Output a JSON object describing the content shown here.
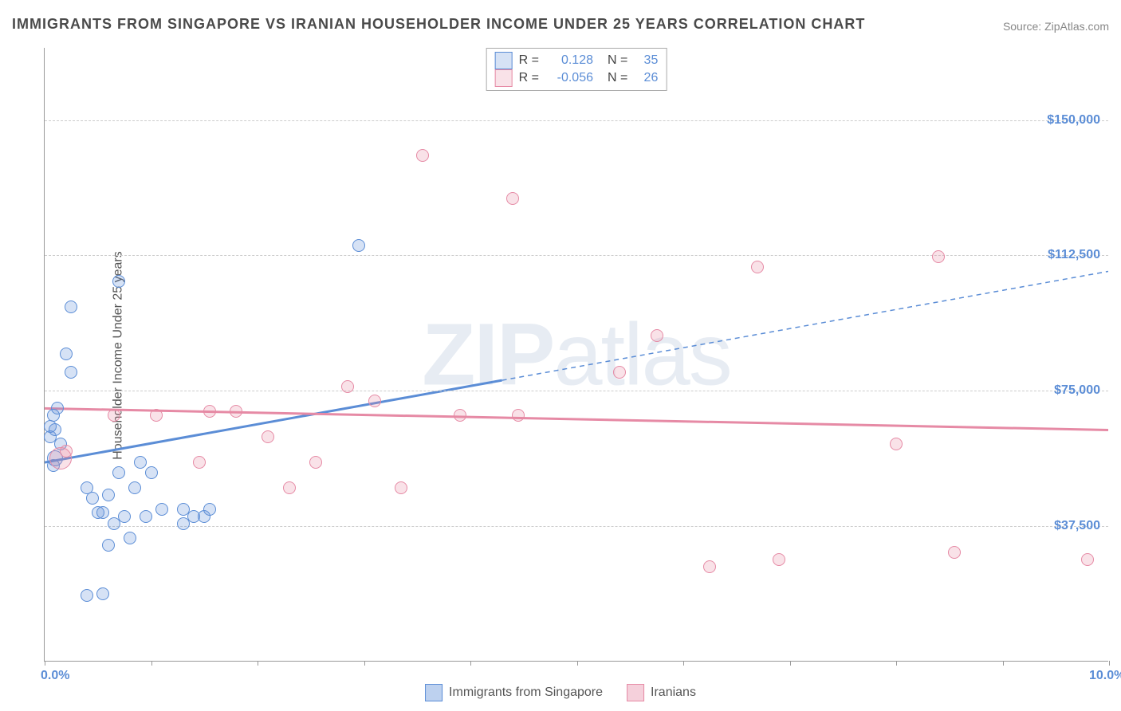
{
  "title": "IMMIGRANTS FROM SINGAPORE VS IRANIAN HOUSEHOLDER INCOME UNDER 25 YEARS CORRELATION CHART",
  "source": "Source: ZipAtlas.com",
  "watermark": "ZIPatlas",
  "chart": {
    "type": "scatter",
    "background_color": "#ffffff",
    "grid_color": "#cccccc",
    "axis_color": "#999999",
    "xlim": [
      0,
      10
    ],
    "ylim": [
      0,
      170000
    ],
    "x_ticks": [
      0,
      1,
      2,
      3,
      4,
      5,
      6,
      7,
      8,
      9,
      10
    ],
    "x_tick_labels": {
      "0": "0.0%",
      "10": "10.0%"
    },
    "y_gridlines": [
      37500,
      75000,
      112500,
      150000
    ],
    "y_tick_labels": [
      "$37,500",
      "$75,000",
      "$112,500",
      "$150,000"
    ],
    "ylabel": "Householder Income Under 25 years",
    "ylabel_fontsize": 16,
    "tick_label_color": "#5b8dd6",
    "tick_label_fontsize": 16,
    "marker_radius": 8,
    "marker_stroke_width": 1.5,
    "marker_fill_opacity": 0.25
  },
  "series": [
    {
      "name": "Immigrants from Singapore",
      "color": "#5b8dd6",
      "fill": "rgba(91,141,214,0.25)",
      "R": "0.128",
      "N": "35",
      "trend": {
        "x1": 0,
        "y1": 55000,
        "x2": 10,
        "y2": 108000,
        "solid_until_x": 4.3,
        "width": 3,
        "dash": "6,5"
      },
      "points": [
        {
          "x": 0.05,
          "y": 65000,
          "r": 8
        },
        {
          "x": 0.05,
          "y": 62000,
          "r": 8
        },
        {
          "x": 0.08,
          "y": 68000,
          "r": 8
        },
        {
          "x": 0.1,
          "y": 64000,
          "r": 8
        },
        {
          "x": 0.12,
          "y": 70000,
          "r": 8
        },
        {
          "x": 0.15,
          "y": 60000,
          "r": 8
        },
        {
          "x": 0.1,
          "y": 56000,
          "r": 10
        },
        {
          "x": 0.08,
          "y": 54000,
          "r": 8
        },
        {
          "x": 0.2,
          "y": 85000,
          "r": 8
        },
        {
          "x": 0.25,
          "y": 80000,
          "r": 8
        },
        {
          "x": 0.25,
          "y": 98000,
          "r": 8
        },
        {
          "x": 0.4,
          "y": 48000,
          "r": 8
        },
        {
          "x": 0.45,
          "y": 45000,
          "r": 8
        },
        {
          "x": 0.5,
          "y": 41000,
          "r": 8
        },
        {
          "x": 0.55,
          "y": 41000,
          "r": 8
        },
        {
          "x": 0.6,
          "y": 46000,
          "r": 8
        },
        {
          "x": 0.65,
          "y": 38000,
          "r": 8
        },
        {
          "x": 0.7,
          "y": 52000,
          "r": 8
        },
        {
          "x": 0.75,
          "y": 40000,
          "r": 8
        },
        {
          "x": 0.8,
          "y": 34000,
          "r": 8
        },
        {
          "x": 0.85,
          "y": 48000,
          "r": 8
        },
        {
          "x": 0.9,
          "y": 55000,
          "r": 8
        },
        {
          "x": 0.95,
          "y": 40000,
          "r": 8
        },
        {
          "x": 0.4,
          "y": 18000,
          "r": 8
        },
        {
          "x": 0.55,
          "y": 18500,
          "r": 8
        },
        {
          "x": 0.6,
          "y": 32000,
          "r": 8
        },
        {
          "x": 0.7,
          "y": 105000,
          "r": 8
        },
        {
          "x": 1.0,
          "y": 52000,
          "r": 8
        },
        {
          "x": 1.1,
          "y": 42000,
          "r": 8
        },
        {
          "x": 1.3,
          "y": 38000,
          "r": 8
        },
        {
          "x": 1.3,
          "y": 42000,
          "r": 8
        },
        {
          "x": 1.4,
          "y": 40000,
          "r": 8
        },
        {
          "x": 1.5,
          "y": 40000,
          "r": 8
        },
        {
          "x": 1.55,
          "y": 42000,
          "r": 8
        },
        {
          "x": 2.95,
          "y": 115000,
          "r": 8
        }
      ]
    },
    {
      "name": "Iranians",
      "color": "#e68aa5",
      "fill": "rgba(230,138,165,0.25)",
      "R": "-0.056",
      "N": "26",
      "trend": {
        "x1": 0,
        "y1": 70000,
        "x2": 10,
        "y2": 64000,
        "solid_until_x": 10,
        "width": 3,
        "dash": ""
      },
      "points": [
        {
          "x": 0.15,
          "y": 56000,
          "r": 14
        },
        {
          "x": 0.2,
          "y": 58000,
          "r": 8
        },
        {
          "x": 0.65,
          "y": 68000,
          "r": 8
        },
        {
          "x": 1.05,
          "y": 68000,
          "r": 8
        },
        {
          "x": 1.45,
          "y": 55000,
          "r": 8
        },
        {
          "x": 1.55,
          "y": 69000,
          "r": 8
        },
        {
          "x": 1.8,
          "y": 69000,
          "r": 8
        },
        {
          "x": 2.1,
          "y": 62000,
          "r": 8
        },
        {
          "x": 2.3,
          "y": 48000,
          "r": 8
        },
        {
          "x": 2.55,
          "y": 55000,
          "r": 8
        },
        {
          "x": 2.85,
          "y": 76000,
          "r": 8
        },
        {
          "x": 3.1,
          "y": 72000,
          "r": 8
        },
        {
          "x": 3.35,
          "y": 48000,
          "r": 8
        },
        {
          "x": 3.55,
          "y": 140000,
          "r": 8
        },
        {
          "x": 3.9,
          "y": 68000,
          "r": 8
        },
        {
          "x": 4.4,
          "y": 128000,
          "r": 8
        },
        {
          "x": 4.45,
          "y": 68000,
          "r": 8
        },
        {
          "x": 5.4,
          "y": 80000,
          "r": 8
        },
        {
          "x": 5.75,
          "y": 90000,
          "r": 8
        },
        {
          "x": 6.25,
          "y": 26000,
          "r": 8
        },
        {
          "x": 6.7,
          "y": 109000,
          "r": 8
        },
        {
          "x": 6.9,
          "y": 28000,
          "r": 8
        },
        {
          "x": 8.0,
          "y": 60000,
          "r": 8
        },
        {
          "x": 8.4,
          "y": 112000,
          "r": 8
        },
        {
          "x": 8.55,
          "y": 30000,
          "r": 8
        },
        {
          "x": 9.8,
          "y": 28000,
          "r": 8
        }
      ]
    }
  ],
  "legend": [
    {
      "label": "Immigrants from Singapore",
      "color": "#5b8dd6",
      "fill": "rgba(91,141,214,0.4)"
    },
    {
      "label": "Iranians",
      "color": "#e68aa5",
      "fill": "rgba(230,138,165,0.4)"
    }
  ]
}
